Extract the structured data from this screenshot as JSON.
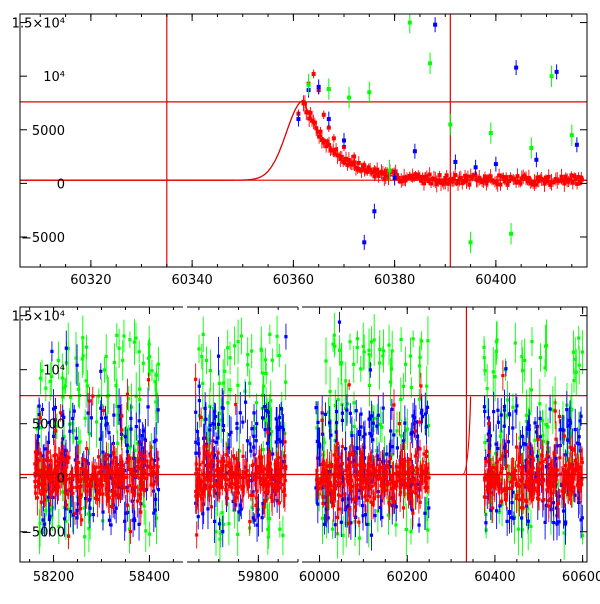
{
  "chart_data": [
    {
      "type": "scatter",
      "title": "",
      "xlabel": "",
      "ylabel": "",
      "xlim": [
        60306,
        60418
      ],
      "ylim": [
        -7800,
        15800
      ],
      "x_ticks": [
        {
          "value": 60320,
          "label": "60320"
        },
        {
          "value": 60340,
          "label": "60340"
        },
        {
          "value": 60360,
          "label": "60360"
        },
        {
          "value": 60380,
          "label": "60380"
        },
        {
          "value": 60400,
          "label": "60400"
        }
      ],
      "y_ticks": [
        {
          "value": -5000,
          "label": "−5000"
        },
        {
          "value": 0,
          "label": "0"
        },
        {
          "value": 5000,
          "label": "5000"
        },
        {
          "value": 10000,
          "label": "10⁴"
        },
        {
          "value": 15000,
          "label": "1.5×10⁴"
        }
      ],
      "reference_lines": {
        "vertical": [
          60335,
          60391
        ],
        "horizontal": [
          300,
          7600
        ]
      },
      "model_curve": {
        "peak_x": 60362,
        "peak_y": 7700,
        "rise_scale": 4.5,
        "decay_scale": 6,
        "baseline": 300
      },
      "series": [
        {
          "color": "#ff0000",
          "points": [
            [
              60361,
              6500
            ],
            [
              60362,
              7600
            ],
            [
              60363,
              9300
            ],
            [
              60364,
              10200
            ],
            [
              60365,
              8700
            ],
            [
              60366,
              6400
            ],
            [
              60367,
              5200
            ],
            [
              60368,
              4200
            ],
            [
              60370,
              3400
            ],
            [
              60372,
              2500
            ],
            [
              60374,
              1700
            ],
            [
              60376,
              1300
            ],
            [
              60378,
              1000
            ],
            [
              60380,
              800
            ],
            [
              60383,
              700
            ],
            [
              60386,
              600
            ],
            [
              60390,
              500
            ],
            [
              60394,
              450
            ],
            [
              60398,
              450
            ],
            [
              60402,
              400
            ],
            [
              60406,
              400
            ],
            [
              60410,
              350
            ],
            [
              60414,
              350
            ],
            [
              60417,
              350
            ]
          ]
        },
        {
          "color": "#0000ff",
          "points": [
            [
              60361,
              6000
            ],
            [
              60363,
              8700
            ],
            [
              60365,
              9000
            ],
            [
              60367,
              6000
            ],
            [
              60370,
              4000
            ],
            [
              60374,
              -5500
            ],
            [
              60376,
              -2600
            ],
            [
              60380,
              500
            ],
            [
              60384,
              3000
            ],
            [
              60388,
              14800
            ],
            [
              60392,
              2000
            ],
            [
              60396,
              1500
            ],
            [
              60400,
              1800
            ],
            [
              60404,
              10800
            ],
            [
              60408,
              2200
            ],
            [
              60412,
              10400
            ],
            [
              60416,
              3600
            ]
          ]
        },
        {
          "color": "#00ff00",
          "points": [
            [
              60363,
              9200
            ],
            [
              60367,
              8800
            ],
            [
              60371,
              8000
            ],
            [
              60375,
              8500
            ],
            [
              60379,
              1200
            ],
            [
              60383,
              15000
            ],
            [
              60387,
              11200
            ],
            [
              60391,
              5500
            ],
            [
              60395,
              -5500
            ],
            [
              60399,
              4700
            ],
            [
              60403,
              -4700
            ],
            [
              60407,
              3300
            ],
            [
              60411,
              10000
            ],
            [
              60415,
              4500
            ]
          ]
        }
      ]
    },
    {
      "type": "scatter",
      "title": "",
      "xlabel": "",
      "ylabel": "",
      "ylim": [
        -7800,
        15800
      ],
      "segments": [
        {
          "xlim": [
            58130,
            58470
          ],
          "band": [
            58160,
            58420
          ],
          "x_ticks": [
            {
              "value": 58200,
              "label": "58200"
            },
            {
              "value": 58400,
              "label": "58400"
            }
          ]
        },
        {
          "xlim": [
            59620,
            59900
          ],
          "band": [
            59640,
            59870
          ],
          "x_ticks": [
            {
              "value": 59800,
              "label": "59800"
            }
          ]
        },
        {
          "xlim": [
            59960,
            60610
          ],
          "band_list": [
            [
              59990,
              60250
            ],
            [
              60375,
              60600
            ]
          ],
          "x_ticks": [
            {
              "value": 60000,
              "label": "60000"
            },
            {
              "value": 60200,
              "label": "60200"
            },
            {
              "value": 60400,
              "label": "60400"
            },
            {
              "value": 60600,
              "label": "60600"
            }
          ]
        }
      ],
      "y_ticks": [
        {
          "value": -5000,
          "label": "−5000"
        },
        {
          "value": 0,
          "label": "0"
        },
        {
          "value": 5000,
          "label": "5000"
        },
        {
          "value": 10000,
          "label": "10⁴"
        },
        {
          "value": 15000,
          "label": "1.5×10⁴"
        }
      ],
      "reference_lines": {
        "vertical": [
          60335
        ],
        "horizontal": [
          300,
          7600
        ]
      },
      "series": [
        {
          "color": "#00ff00",
          "name": ""
        },
        {
          "color": "#0000ff",
          "name": ""
        },
        {
          "color": "#ff0000",
          "name": ""
        }
      ]
    }
  ]
}
